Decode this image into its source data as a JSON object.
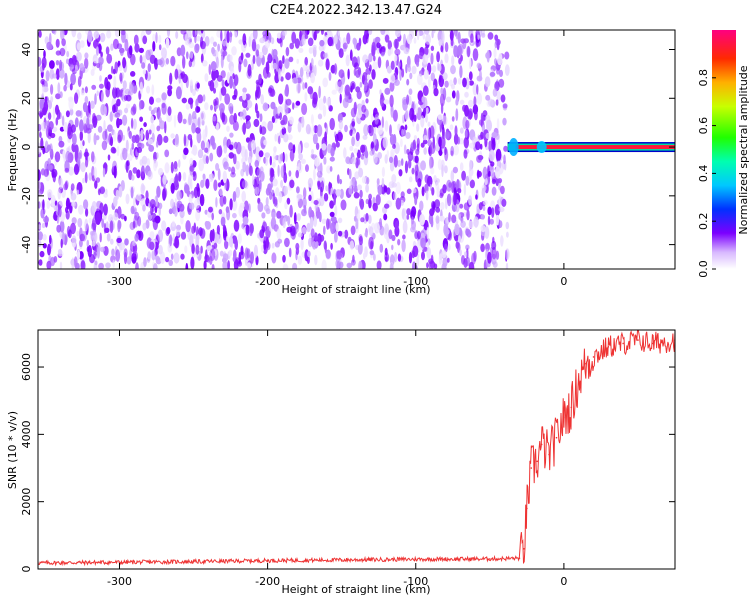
{
  "title": "C2E4.2022.342.13.47.G24",
  "chart_data": [
    {
      "type": "heatmap",
      "xlabel": "Height of straight line (km)",
      "ylabel": "Frequency (Hz)",
      "xlim": [
        -355,
        75
      ],
      "ylim": [
        -50,
        48
      ],
      "xticks": [
        -300,
        -200,
        -100,
        0
      ],
      "yticks": [
        -40,
        -20,
        0,
        20,
        40
      ],
      "noise_region_x": [
        -355,
        -38
      ],
      "signal_band": {
        "x_start": -38,
        "x_end": 75,
        "frequency": 0
      },
      "colorbar": {
        "label": "Normalized spectral amplitude",
        "range": [
          0,
          1
        ],
        "ticks": [
          "0.0",
          "0.2",
          "0.4",
          "0.6",
          "0.8"
        ]
      }
    },
    {
      "type": "line",
      "xlabel": "Height of straight line (km)",
      "ylabel": "SNR (10 * v/v)",
      "xlim": [
        -355,
        75
      ],
      "ylim": [
        0,
        7100
      ],
      "xticks": [
        -300,
        -200,
        -100,
        0
      ],
      "yticks": [
        0,
        2000,
        4000,
        6000
      ],
      "color": "#ee3333",
      "x": [
        -355,
        -300,
        -250,
        -200,
        -150,
        -100,
        -50,
        -30,
        -27,
        -25,
        -22,
        -18,
        -15,
        -10,
        -5,
        0,
        5,
        10,
        15,
        20,
        30,
        40,
        50,
        60,
        75
      ],
      "y": [
        180,
        200,
        220,
        250,
        270,
        290,
        300,
        320,
        600,
        1800,
        3000,
        3200,
        3700,
        3400,
        3900,
        4500,
        4800,
        5600,
        6100,
        6300,
        6600,
        6700,
        6800,
        6700,
        6800
      ]
    }
  ]
}
